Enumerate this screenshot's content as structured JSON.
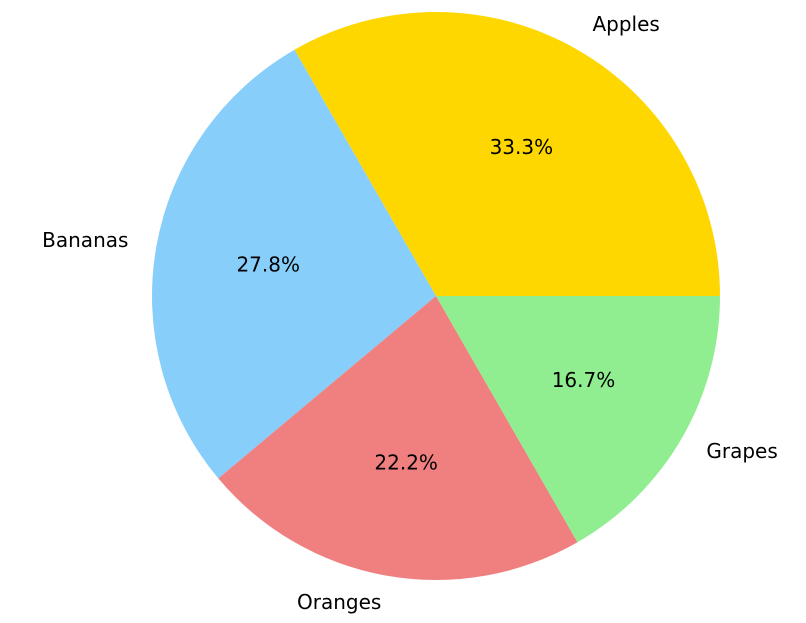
{
  "chart_data": {
    "type": "pie",
    "categories": [
      "Apples",
      "Bananas",
      "Oranges",
      "Grapes"
    ],
    "values": [
      33.3,
      27.8,
      22.2,
      16.7
    ],
    "value_labels": [
      "33.3%",
      "27.8%",
      "22.2%",
      "16.7%"
    ],
    "colors": [
      "#ffd700",
      "#87cefa",
      "#f08080",
      "#90ee90"
    ]
  }
}
